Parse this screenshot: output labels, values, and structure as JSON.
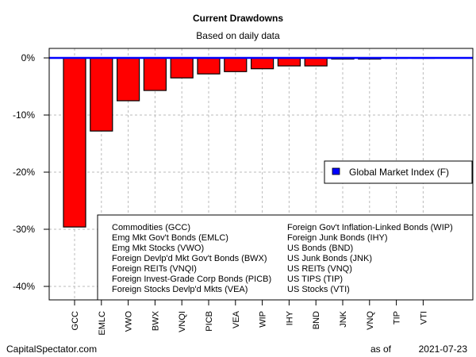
{
  "chart_data": {
    "type": "bar",
    "title": "Current Drawdowns",
    "subtitle": "Based on daily data",
    "xlabel": "",
    "ylabel": "",
    "ylim": [
      -42,
      2
    ],
    "yticks": [
      0,
      -10,
      -20,
      -30,
      -40
    ],
    "ytick_labels": [
      "0%",
      "-10%",
      "-20%",
      "-30%",
      "-40%"
    ],
    "grid": true,
    "categories": [
      "GCC",
      "EMLC",
      "VWO",
      "BWX",
      "VNQI",
      "PICB",
      "VEA",
      "WIP",
      "IHY",
      "BND",
      "JNK",
      "VNQ",
      "TIP",
      "VTI"
    ],
    "values": [
      -29.6,
      -12.8,
      -7.5,
      -5.7,
      -3.5,
      -2.8,
      -2.4,
      -1.9,
      -1.4,
      -1.4,
      -0.2,
      -0.2,
      0,
      0
    ],
    "bar_color": "#ff0000",
    "reference_line": {
      "name": "Global Market Index (F)",
      "value": 0,
      "color": "#0000ff"
    },
    "legend": {
      "placement": "right",
      "entries": [
        "Global Market Index (F)"
      ]
    },
    "annotation_left": [
      "Commodities (GCC)",
      "Emg Mkt Gov't Bonds (EMLC)",
      "Emg Mkt Stocks (VWO)",
      "Foreign Devlp'd Mkt Gov't Bonds (BWX)",
      "Foreign REITs (VNQI)",
      "Foreign Invest-Grade Corp Bonds (PICB)",
      "Foreign Stocks Devlp'd Mkts (VEA)"
    ],
    "annotation_right": [
      "Foreign Gov't Inflation-Linked Bonds (WIP)",
      "Foreign Junk Bonds (IHY)",
      "US Bonds (BND)",
      "US Junk Bonds (JNK)",
      "US REITs (VNQ)",
      "US TIPS (TIP)",
      "US Stocks (VTI)"
    ]
  },
  "footer": {
    "source": "CapitalSpectator.com",
    "as_of_label": "as of",
    "date": "2021-07-23"
  }
}
